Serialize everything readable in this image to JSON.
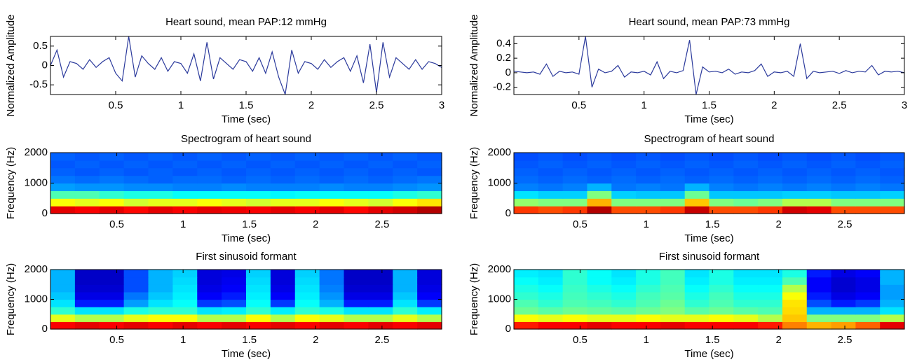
{
  "chart_data": [
    {
      "type": "line",
      "title": "Heart sound, mean PAP:12 mmHg",
      "x_label": "Time (sec)",
      "y_label": "Normalized Amplitude",
      "color": "#2b3a9c",
      "x": [
        0,
        0.05,
        0.1,
        0.15,
        0.2,
        0.25,
        0.3,
        0.35,
        0.4,
        0.45,
        0.5,
        0.55,
        0.6,
        0.65,
        0.7,
        0.75,
        0.8,
        0.85,
        0.9,
        0.95,
        1,
        1.05,
        1.1,
        1.15,
        1.2,
        1.25,
        1.3,
        1.35,
        1.4,
        1.45,
        1.5,
        1.55,
        1.6,
        1.65,
        1.7,
        1.75,
        1.8,
        1.85,
        1.9,
        1.95,
        2,
        2.05,
        2.1,
        2.15,
        2.2,
        2.25,
        2.3,
        2.35,
        2.4,
        2.45,
        2.5,
        2.55,
        2.6,
        2.65,
        2.7,
        2.75,
        2.8,
        2.85,
        2.9,
        2.95,
        3
      ],
      "values": [
        0,
        0.4,
        -0.3,
        0.1,
        0.05,
        -0.1,
        0.15,
        -0.05,
        0.1,
        0.2,
        -0.2,
        -0.4,
        0.75,
        -0.3,
        0.25,
        0.05,
        -0.1,
        0.2,
        -0.15,
        0.1,
        0.05,
        -0.2,
        0.3,
        -0.4,
        0.6,
        -0.35,
        0.2,
        0.05,
        -0.1,
        0.15,
        0.1,
        -0.15,
        0.2,
        -0.2,
        0.35,
        -0.3,
        -0.75,
        0.4,
        -0.2,
        0.1,
        0.05,
        -0.1,
        0.15,
        -0.05,
        0.1,
        0.2,
        -0.15,
        0.25,
        -0.45,
        0.55,
        -0.7,
        0.6,
        -0.3,
        0.2,
        0.05,
        -0.1,
        0.15,
        -0.1,
        0.1,
        0.05,
        -0.05
      ],
      "xlim": [
        0,
        3
      ],
      "xticks": [
        0.5,
        1,
        1.5,
        2,
        2.5,
        3
      ],
      "ylim": [
        -0.75,
        0.75
      ],
      "yticks": [
        -0.5,
        0,
        0.5
      ]
    },
    {
      "type": "line",
      "title": "Heart sound, mean PAP:73 mmHg",
      "x_label": "Time (sec)",
      "y_label": "Normalized Amplitude",
      "color": "#2b3a9c",
      "x": [
        0,
        0.05,
        0.1,
        0.15,
        0.2,
        0.25,
        0.3,
        0.35,
        0.4,
        0.45,
        0.5,
        0.55,
        0.6,
        0.65,
        0.7,
        0.75,
        0.8,
        0.85,
        0.9,
        0.95,
        1,
        1.05,
        1.1,
        1.15,
        1.2,
        1.25,
        1.3,
        1.35,
        1.4,
        1.45,
        1.5,
        1.55,
        1.6,
        1.65,
        1.7,
        1.75,
        1.8,
        1.85,
        1.9,
        1.95,
        2,
        2.05,
        2.1,
        2.15,
        2.2,
        2.25,
        2.3,
        2.35,
        2.4,
        2.45,
        2.5,
        2.55,
        2.6,
        2.65,
        2.7,
        2.75,
        2.8,
        2.85,
        2.9,
        2.95,
        3
      ],
      "values": [
        0.02,
        0.01,
        0,
        0.01,
        -0.02,
        0.12,
        -0.05,
        0.02,
        0,
        0.01,
        -0.02,
        0.5,
        -0.2,
        0.05,
        0,
        0.02,
        0.1,
        -0.06,
        0.01,
        0,
        0.02,
        -0.03,
        0.15,
        -0.08,
        0.02,
        0,
        0.03,
        0.45,
        -0.3,
        0.08,
        0.01,
        0.02,
        0,
        0.05,
        -0.02,
        0.01,
        0,
        0.03,
        0.12,
        -0.05,
        0.01,
        0,
        0.02,
        -0.05,
        0.4,
        -0.08,
        0.02,
        0,
        0.01,
        0.02,
        -0.01,
        0.03,
        0,
        0.02,
        0.01,
        0.1,
        -0.03,
        0.02,
        0.01,
        0.02,
        0
      ],
      "xlim": [
        0,
        3
      ],
      "xticks": [
        0.5,
        1,
        1.5,
        2,
        2.5,
        3
      ],
      "ylim": [
        -0.3,
        0.5
      ],
      "yticks": [
        -0.2,
        0,
        0.2,
        0.4
      ]
    },
    {
      "type": "heatmap",
      "title": "Spectrogram of heart sound",
      "x_label": "Time (sec)",
      "y_label": "Frequency (Hz)",
      "colormap": "jet",
      "xlim": [
        0,
        2.95
      ],
      "xticks": [
        0.5,
        1,
        1.5,
        2,
        2.5
      ],
      "ylim": [
        0,
        2000
      ],
      "yticks": [
        0,
        1000,
        2000
      ],
      "z": [
        [
          0.9,
          0.88,
          0.9,
          0.87,
          0.9,
          0.88,
          0.9,
          0.89,
          0.88,
          0.9,
          0.88,
          0.9,
          0.87,
          0.9,
          0.92,
          0.95
        ],
        [
          0.62,
          0.6,
          0.62,
          0.58,
          0.6,
          0.6,
          0.62,
          0.6,
          0.58,
          0.6,
          0.6,
          0.62,
          0.6,
          0.58,
          0.62,
          0.65
        ],
        [
          0.45,
          0.45,
          0.42,
          0.4,
          0.4,
          0.38,
          0.38,
          0.38,
          0.38,
          0.37,
          0.38,
          0.38,
          0.38,
          0.38,
          0.4,
          0.42
        ],
        [
          0.28,
          0.27,
          0.27,
          0.26,
          0.26,
          0.25,
          0.25,
          0.26,
          0.25,
          0.25,
          0.25,
          0.26,
          0.25,
          0.25,
          0.26,
          0.27
        ],
        [
          0.24,
          0.23,
          0.24,
          0.23,
          0.22,
          0.23,
          0.23,
          0.22,
          0.23,
          0.22,
          0.23,
          0.22,
          0.23,
          0.22,
          0.23,
          0.24
        ],
        [
          0.22,
          0.21,
          0.22,
          0.21,
          0.22,
          0.21,
          0.22,
          0.21,
          0.22,
          0.21,
          0.22,
          0.21,
          0.22,
          0.21,
          0.22,
          0.21
        ],
        [
          0.21,
          0.22,
          0.21,
          0.22,
          0.21,
          0.22,
          0.21,
          0.22,
          0.21,
          0.22,
          0.21,
          0.22,
          0.21,
          0.22,
          0.21,
          0.22
        ],
        [
          0.22,
          0.21,
          0.22,
          0.21,
          0.22,
          0.21,
          0.22,
          0.21,
          0.22,
          0.21,
          0.22,
          0.21,
          0.22,
          0.21,
          0.22,
          0.21
        ]
      ]
    },
    {
      "type": "heatmap",
      "title": "Spectrogram of heart sound",
      "x_label": "Time (sec)",
      "y_label": "Frequency (Hz)",
      "colormap": "jet",
      "xlim": [
        0,
        2.95
      ],
      "xticks": [
        0.5,
        1,
        1.5,
        2,
        2.5
      ],
      "ylim": [
        0,
        2000
      ],
      "yticks": [
        0,
        1000,
        2000
      ],
      "z": [
        [
          0.82,
          0.8,
          0.82,
          0.95,
          0.8,
          0.8,
          0.82,
          0.93,
          0.8,
          0.8,
          0.82,
          0.92,
          0.9,
          0.8,
          0.8,
          0.8
        ],
        [
          0.52,
          0.5,
          0.5,
          0.7,
          0.5,
          0.5,
          0.5,
          0.68,
          0.5,
          0.48,
          0.5,
          0.55,
          0.55,
          0.5,
          0.5,
          0.5
        ],
        [
          0.35,
          0.33,
          0.33,
          0.5,
          0.33,
          0.32,
          0.32,
          0.48,
          0.32,
          0.32,
          0.32,
          0.33,
          0.33,
          0.32,
          0.32,
          0.33
        ],
        [
          0.25,
          0.24,
          0.25,
          0.3,
          0.24,
          0.25,
          0.24,
          0.3,
          0.25,
          0.24,
          0.25,
          0.24,
          0.25,
          0.24,
          0.25,
          0.24
        ],
        [
          0.23,
          0.22,
          0.23,
          0.22,
          0.23,
          0.22,
          0.23,
          0.22,
          0.23,
          0.22,
          0.23,
          0.22,
          0.23,
          0.22,
          0.23,
          0.22
        ],
        [
          0.22,
          0.21,
          0.22,
          0.21,
          0.22,
          0.21,
          0.22,
          0.21,
          0.22,
          0.21,
          0.22,
          0.21,
          0.22,
          0.21,
          0.22,
          0.21
        ],
        [
          0.21,
          0.22,
          0.21,
          0.22,
          0.21,
          0.22,
          0.21,
          0.22,
          0.21,
          0.22,
          0.21,
          0.22,
          0.21,
          0.22,
          0.21,
          0.22
        ],
        [
          0.2,
          0.21,
          0.2,
          0.21,
          0.2,
          0.21,
          0.2,
          0.21,
          0.2,
          0.21,
          0.2,
          0.21,
          0.2,
          0.21,
          0.2,
          0.21
        ]
      ]
    },
    {
      "type": "heatmap",
      "title": "First sinusoid formant",
      "x_label": "Time (sec)",
      "y_label": "Frequency (Hz)",
      "colormap": "jet",
      "xlim": [
        0,
        2.95
      ],
      "xticks": [
        0.5,
        1,
        1.5,
        2,
        2.5
      ],
      "ylim": [
        0,
        2000
      ],
      "yticks": [
        0,
        1000,
        2000
      ],
      "z": [
        [
          0.88,
          0.9,
          0.88,
          0.9,
          0.88,
          0.9,
          0.88,
          0.9,
          0.88,
          0.9,
          0.88,
          0.9,
          0.88,
          0.9,
          0.88,
          0.9
        ],
        [
          0.6,
          0.55,
          0.55,
          0.6,
          0.62,
          0.62,
          0.55,
          0.55,
          0.62,
          0.55,
          0.62,
          0.6,
          0.55,
          0.55,
          0.6,
          0.55
        ],
        [
          0.42,
          0.35,
          0.35,
          0.4,
          0.42,
          0.42,
          0.35,
          0.36,
          0.42,
          0.36,
          0.42,
          0.4,
          0.35,
          0.35,
          0.42,
          0.36
        ],
        [
          0.35,
          0.15,
          0.15,
          0.28,
          0.35,
          0.38,
          0.18,
          0.2,
          0.38,
          0.18,
          0.38,
          0.3,
          0.15,
          0.15,
          0.35,
          0.18
        ],
        [
          0.32,
          0.1,
          0.1,
          0.24,
          0.32,
          0.36,
          0.12,
          0.15,
          0.36,
          0.12,
          0.36,
          0.27,
          0.1,
          0.1,
          0.32,
          0.12
        ],
        [
          0.3,
          0.08,
          0.08,
          0.2,
          0.3,
          0.35,
          0.1,
          0.12,
          0.35,
          0.1,
          0.35,
          0.25,
          0.08,
          0.08,
          0.3,
          0.1
        ],
        [
          0.3,
          0.07,
          0.07,
          0.2,
          0.3,
          0.34,
          0.09,
          0.11,
          0.34,
          0.09,
          0.34,
          0.24,
          0.07,
          0.07,
          0.3,
          0.09
        ],
        [
          0.3,
          0.07,
          0.07,
          0.2,
          0.3,
          0.33,
          0.09,
          0.1,
          0.33,
          0.09,
          0.33,
          0.24,
          0.07,
          0.07,
          0.3,
          0.09
        ]
      ]
    },
    {
      "type": "heatmap",
      "title": "First sinusoid formant",
      "x_label": "Time (sec)",
      "y_label": "Frequency (Hz)",
      "colormap": "jet",
      "xlim": [
        0,
        2.95
      ],
      "xticks": [
        0.5,
        1,
        1.5,
        2,
        2.5
      ],
      "ylim": [
        0,
        2000
      ],
      "yticks": [
        0,
        1000,
        2000
      ],
      "z": [
        [
          0.85,
          0.88,
          0.88,
          0.9,
          0.88,
          0.88,
          0.9,
          0.88,
          0.88,
          0.88,
          0.85,
          0.75,
          0.7,
          0.72,
          0.78,
          0.9
        ],
        [
          0.62,
          0.6,
          0.62,
          0.6,
          0.6,
          0.62,
          0.6,
          0.6,
          0.62,
          0.6,
          0.55,
          0.68,
          0.5,
          0.5,
          0.5,
          0.55
        ],
        [
          0.48,
          0.46,
          0.48,
          0.47,
          0.46,
          0.48,
          0.5,
          0.46,
          0.48,
          0.46,
          0.45,
          0.66,
          0.3,
          0.3,
          0.3,
          0.35
        ],
        [
          0.45,
          0.42,
          0.45,
          0.44,
          0.42,
          0.45,
          0.48,
          0.42,
          0.45,
          0.42,
          0.42,
          0.65,
          0.2,
          0.15,
          0.18,
          0.3
        ],
        [
          0.42,
          0.4,
          0.44,
          0.42,
          0.4,
          0.44,
          0.46,
          0.4,
          0.44,
          0.4,
          0.4,
          0.62,
          0.15,
          0.1,
          0.12,
          0.28
        ],
        [
          0.4,
          0.38,
          0.43,
          0.4,
          0.38,
          0.42,
          0.45,
          0.38,
          0.42,
          0.38,
          0.38,
          0.55,
          0.12,
          0.08,
          0.1,
          0.28
        ],
        [
          0.38,
          0.36,
          0.42,
          0.38,
          0.36,
          0.4,
          0.44,
          0.36,
          0.4,
          0.36,
          0.36,
          0.45,
          0.12,
          0.08,
          0.1,
          0.3
        ],
        [
          0.36,
          0.35,
          0.42,
          0.38,
          0.35,
          0.4,
          0.44,
          0.35,
          0.4,
          0.35,
          0.35,
          0.4,
          0.15,
          0.1,
          0.12,
          0.3
        ]
      ]
    }
  ]
}
